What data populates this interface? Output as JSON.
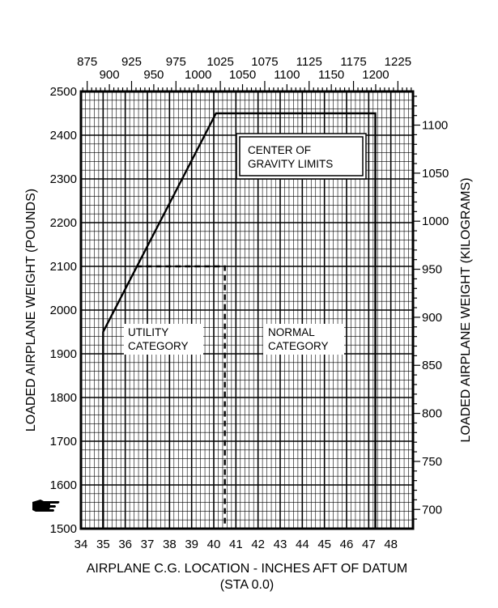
{
  "chart_data": {
    "type": "line",
    "title": "",
    "xlabel": "AIRPLANE C.G. LOCATION - INCHES AFT OF DATUM",
    "xlabel_line2": "(STA 0.0)",
    "ylabel": "LOADED AIRPLANE WEIGHT (POUNDS)",
    "y2label": "LOADED AIRPLANE WEIGHT (KILOGRAMS)",
    "xlim": [
      34,
      49
    ],
    "ylim": [
      1500,
      2500
    ],
    "x2lim": [
      868,
      1242
    ],
    "y2lim": [
      680,
      1135
    ],
    "grid": true,
    "x_ticks": [
      "34",
      "35",
      "36",
      "37",
      "38",
      "39",
      "40",
      "41",
      "42",
      "43",
      "44",
      "45",
      "46",
      "47",
      "48"
    ],
    "y_ticks": [
      "1500",
      "1600",
      "1700",
      "1800",
      "1900",
      "2000",
      "2100",
      "2200",
      "2300",
      "2400",
      "2500"
    ],
    "x2_ticks_upper": [
      "875",
      "925",
      "975",
      "1025",
      "1075",
      "1125",
      "1175",
      "1225"
    ],
    "x2_ticks_lower": [
      "900",
      "950",
      "1000",
      "1050",
      "1100",
      "1150",
      "1200"
    ],
    "y2_ticks": [
      "700",
      "750",
      "800",
      "850",
      "900",
      "950",
      "1000",
      "1050",
      "1100"
    ],
    "series": [
      {
        "name": "NORMAL CATEGORY",
        "style": "solid",
        "x": [
          35.0,
          35.0,
          40.1,
          47.3,
          47.3
        ],
        "y": [
          1500,
          1950,
          2450,
          2450,
          1500
        ]
      },
      {
        "name": "UTILITY CATEGORY",
        "style": "dashed",
        "x": [
          36.5,
          40.5,
          40.5
        ],
        "y": [
          2100,
          2100,
          1500
        ]
      }
    ],
    "annotations": [
      {
        "lines": [
          "CENTER OF",
          "GRAVITY LIMITS"
        ]
      },
      {
        "lines": [
          "UTILITY",
          "CATEGORY"
        ]
      },
      {
        "lines": [
          "NORMAL",
          "CATEGORY"
        ]
      }
    ]
  }
}
